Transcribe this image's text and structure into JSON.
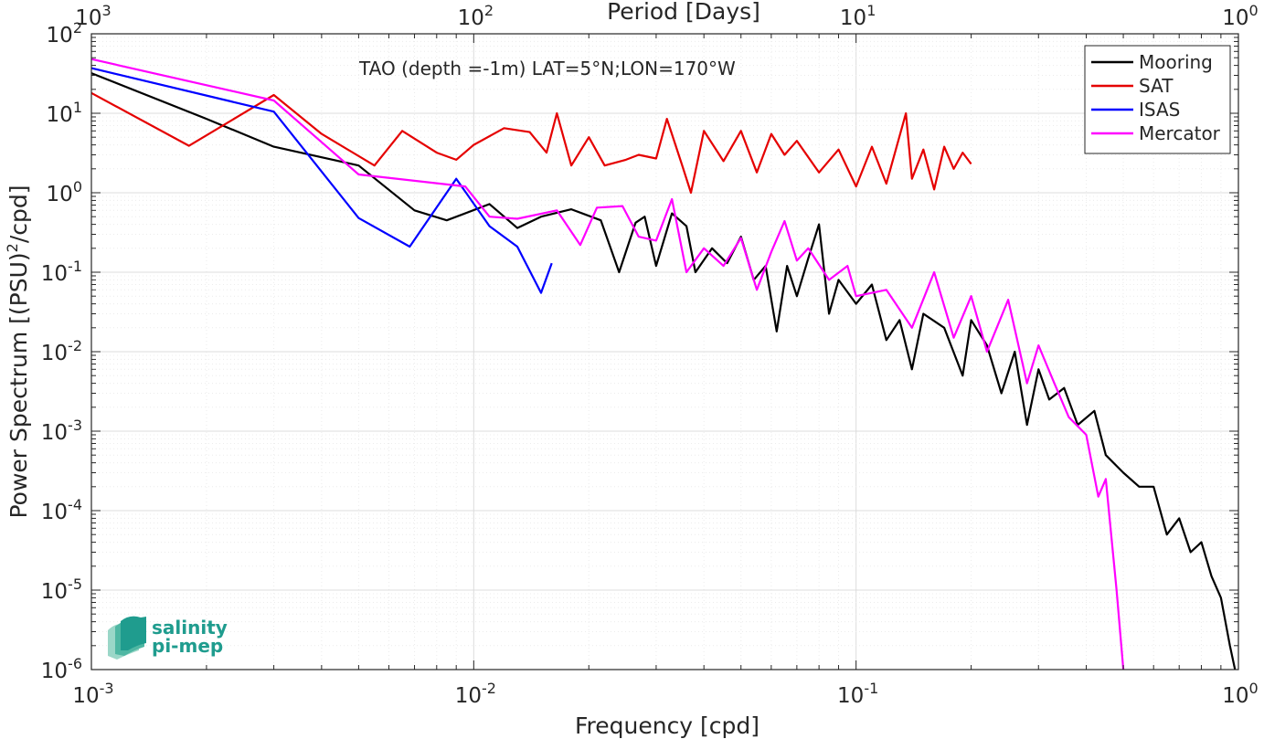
{
  "chart_data": {
    "type": "line",
    "title": "TAO (depth =-1m) LAT=5°N;LON=170°W",
    "xlabel": "Frequency [cpd]",
    "ylabel": "Power Spectrum [(PSU)",
    "ylabel_sup": "2",
    "ylabel_tail": "/cpd]",
    "top_xlabel": "Period [Days]",
    "x_scale": "log",
    "y_scale": "log",
    "xlim": [
      0.001,
      1
    ],
    "ylim": [
      1e-06,
      100
    ],
    "grid": true,
    "legend_position": "top-right",
    "x_ticks": [
      {
        "value": 0.001,
        "base": "10",
        "exp": "-3"
      },
      {
        "value": 0.01,
        "base": "10",
        "exp": "-2"
      },
      {
        "value": 0.1,
        "base": "10",
        "exp": "-1"
      },
      {
        "value": 1,
        "base": "10",
        "exp": "0"
      }
    ],
    "top_ticks": [
      {
        "value": 0.001,
        "base": "10",
        "exp": "3"
      },
      {
        "value": 0.01,
        "base": "10",
        "exp": "2"
      },
      {
        "value": 0.1,
        "base": "10",
        "exp": "1"
      },
      {
        "value": 1,
        "base": "10",
        "exp": "0"
      }
    ],
    "y_ticks": [
      {
        "value": 100,
        "base": "10",
        "exp": "2"
      },
      {
        "value": 10,
        "base": "10",
        "exp": "1"
      },
      {
        "value": 1,
        "base": "10",
        "exp": "0"
      },
      {
        "value": 0.1,
        "base": "10",
        "exp": "-1"
      },
      {
        "value": 0.01,
        "base": "10",
        "exp": "-2"
      },
      {
        "value": 0.001,
        "base": "10",
        "exp": "-3"
      },
      {
        "value": 0.0001,
        "base": "10",
        "exp": "-4"
      },
      {
        "value": 1e-05,
        "base": "10",
        "exp": "-5"
      },
      {
        "value": 1e-06,
        "base": "10",
        "exp": "-6"
      }
    ],
    "series": [
      {
        "name": "Mooring",
        "color": "#000000",
        "points": [
          [
            0.001,
            32
          ],
          [
            0.002,
            8.5
          ],
          [
            0.003,
            3.8
          ],
          [
            0.005,
            2.2
          ],
          [
            0.007,
            0.6
          ],
          [
            0.0085,
            0.45
          ],
          [
            0.011,
            0.72
          ],
          [
            0.013,
            0.36
          ],
          [
            0.015,
            0.5
          ],
          [
            0.018,
            0.62
          ],
          [
            0.0215,
            0.45
          ],
          [
            0.024,
            0.1
          ],
          [
            0.0265,
            0.42
          ],
          [
            0.028,
            0.5
          ],
          [
            0.03,
            0.12
          ],
          [
            0.033,
            0.55
          ],
          [
            0.036,
            0.38
          ],
          [
            0.038,
            0.1
          ],
          [
            0.042,
            0.2
          ],
          [
            0.046,
            0.13
          ],
          [
            0.05,
            0.28
          ],
          [
            0.054,
            0.08
          ],
          [
            0.058,
            0.12
          ],
          [
            0.062,
            0.018
          ],
          [
            0.066,
            0.12
          ],
          [
            0.07,
            0.05
          ],
          [
            0.075,
            0.15
          ],
          [
            0.08,
            0.4
          ],
          [
            0.085,
            0.03
          ],
          [
            0.09,
            0.08
          ],
          [
            0.1,
            0.04
          ],
          [
            0.11,
            0.07
          ],
          [
            0.12,
            0.014
          ],
          [
            0.13,
            0.025
          ],
          [
            0.14,
            0.006
          ],
          [
            0.15,
            0.03
          ],
          [
            0.17,
            0.02
          ],
          [
            0.19,
            0.005
          ],
          [
            0.2,
            0.025
          ],
          [
            0.22,
            0.012
          ],
          [
            0.24,
            0.003
          ],
          [
            0.26,
            0.01
          ],
          [
            0.28,
            0.0012
          ],
          [
            0.3,
            0.006
          ],
          [
            0.32,
            0.0025
          ],
          [
            0.35,
            0.0035
          ],
          [
            0.38,
            0.0012
          ],
          [
            0.42,
            0.0018
          ],
          [
            0.45,
            0.0005
          ],
          [
            0.5,
            0.0003
          ],
          [
            0.55,
            0.0002
          ],
          [
            0.6,
            0.0002
          ],
          [
            0.65,
            5e-05
          ],
          [
            0.7,
            8e-05
          ],
          [
            0.75,
            3e-05
          ],
          [
            0.8,
            4e-05
          ],
          [
            0.85,
            1.5e-05
          ],
          [
            0.9,
            8e-06
          ],
          [
            0.95,
            2e-06
          ],
          [
            0.98,
            1e-06
          ]
        ]
      },
      {
        "name": "SAT",
        "color": "#e50000",
        "points": [
          [
            0.001,
            18
          ],
          [
            0.0018,
            3.9
          ],
          [
            0.003,
            17
          ],
          [
            0.004,
            5.5
          ],
          [
            0.0055,
            2.2
          ],
          [
            0.0065,
            6
          ],
          [
            0.008,
            3.2
          ],
          [
            0.009,
            2.6
          ],
          [
            0.01,
            4
          ],
          [
            0.012,
            6.5
          ],
          [
            0.014,
            5.8
          ],
          [
            0.0155,
            3.2
          ],
          [
            0.0165,
            10
          ],
          [
            0.018,
            2.2
          ],
          [
            0.02,
            5
          ],
          [
            0.022,
            2.2
          ],
          [
            0.025,
            2.6
          ],
          [
            0.027,
            3
          ],
          [
            0.03,
            2.7
          ],
          [
            0.032,
            8.5
          ],
          [
            0.035,
            2.3
          ],
          [
            0.037,
            1
          ],
          [
            0.04,
            6
          ],
          [
            0.045,
            2.5
          ],
          [
            0.05,
            6
          ],
          [
            0.055,
            1.8
          ],
          [
            0.06,
            5.5
          ],
          [
            0.065,
            3
          ],
          [
            0.07,
            4.5
          ],
          [
            0.08,
            1.8
          ],
          [
            0.09,
            3.5
          ],
          [
            0.1,
            1.2
          ],
          [
            0.11,
            3.8
          ],
          [
            0.12,
            1.3
          ],
          [
            0.135,
            10
          ],
          [
            0.14,
            1.5
          ],
          [
            0.15,
            3.5
          ],
          [
            0.16,
            1.1
          ],
          [
            0.17,
            3.8
          ],
          [
            0.18,
            2
          ],
          [
            0.19,
            3.2
          ],
          [
            0.2,
            2.3
          ]
        ]
      },
      {
        "name": "ISAS",
        "color": "#0000ff",
        "points": [
          [
            0.001,
            37
          ],
          [
            0.003,
            10.5
          ],
          [
            0.005,
            0.48
          ],
          [
            0.0068,
            0.21
          ],
          [
            0.009,
            1.5
          ],
          [
            0.011,
            0.38
          ],
          [
            0.013,
            0.21
          ],
          [
            0.015,
            0.055
          ],
          [
            0.016,
            0.13
          ]
        ]
      },
      {
        "name": "Mercator",
        "color": "#ff00ff",
        "points": [
          [
            0.001,
            48
          ],
          [
            0.003,
            14.5
          ],
          [
            0.005,
            1.7
          ],
          [
            0.0095,
            1.2
          ],
          [
            0.011,
            0.5
          ],
          [
            0.013,
            0.47
          ],
          [
            0.0165,
            0.6
          ],
          [
            0.019,
            0.22
          ],
          [
            0.021,
            0.65
          ],
          [
            0.0245,
            0.68
          ],
          [
            0.027,
            0.28
          ],
          [
            0.03,
            0.25
          ],
          [
            0.033,
            0.83
          ],
          [
            0.036,
            0.1
          ],
          [
            0.04,
            0.2
          ],
          [
            0.045,
            0.12
          ],
          [
            0.05,
            0.27
          ],
          [
            0.055,
            0.06
          ],
          [
            0.06,
            0.18
          ],
          [
            0.065,
            0.44
          ],
          [
            0.07,
            0.14
          ],
          [
            0.075,
            0.2
          ],
          [
            0.085,
            0.08
          ],
          [
            0.095,
            0.12
          ],
          [
            0.1,
            0.05
          ],
          [
            0.12,
            0.06
          ],
          [
            0.14,
            0.02
          ],
          [
            0.16,
            0.1
          ],
          [
            0.18,
            0.015
          ],
          [
            0.2,
            0.05
          ],
          [
            0.22,
            0.01
          ],
          [
            0.25,
            0.045
          ],
          [
            0.28,
            0.004
          ],
          [
            0.3,
            0.012
          ],
          [
            0.33,
            0.004
          ],
          [
            0.36,
            0.0015
          ],
          [
            0.4,
            0.0009
          ],
          [
            0.43,
            0.00015
          ],
          [
            0.45,
            0.00025
          ],
          [
            0.48,
            1e-05
          ],
          [
            0.5,
            1e-06
          ]
        ]
      }
    ]
  },
  "logo": {
    "line1": "salinity",
    "line2": "pi-mep"
  }
}
